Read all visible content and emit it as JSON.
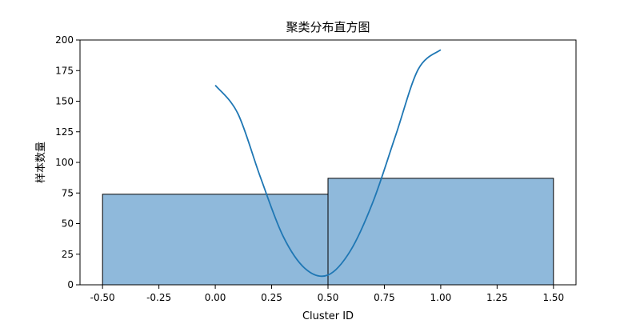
{
  "chart_data": {
    "type": "bar",
    "title": "聚类分布直方图",
    "xlabel": "Cluster ID",
    "ylabel": "样本数量",
    "xlim": [
      -0.6,
      1.6
    ],
    "ylim": [
      0,
      200
    ],
    "xticks": [
      "-0.50",
      "-0.25",
      "0.00",
      "0.25",
      "0.50",
      "0.75",
      "1.00",
      "1.25",
      "1.50"
    ],
    "xtick_values": [
      -0.5,
      -0.25,
      0.0,
      0.25,
      0.5,
      0.75,
      1.0,
      1.25,
      1.5
    ],
    "yticks": [
      "0",
      "25",
      "50",
      "75",
      "100",
      "125",
      "150",
      "175",
      "200"
    ],
    "ytick_values": [
      0,
      25,
      50,
      75,
      100,
      125,
      150,
      175,
      200
    ],
    "bins": [
      {
        "x0": -0.5,
        "x1": 0.5,
        "count": 74
      },
      {
        "x0": 0.5,
        "x1": 1.5,
        "count": 87
      }
    ],
    "kde": {
      "x": [
        0.0,
        0.1,
        0.2,
        0.3,
        0.4,
        0.5,
        0.6,
        0.7,
        0.8,
        0.9,
        1.0
      ],
      "y": [
        163,
        140,
        88,
        40,
        13,
        8,
        28,
        68,
        122,
        176,
        192
      ]
    },
    "grid": false,
    "colors": {
      "bar_fill": "#8fb9db",
      "bar_edge": "#000000",
      "kde_line": "#1f77b4"
    }
  }
}
